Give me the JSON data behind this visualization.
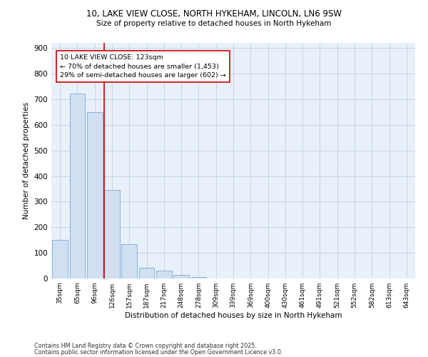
{
  "title1": "10, LAKE VIEW CLOSE, NORTH HYKEHAM, LINCOLN, LN6 9SW",
  "title2": "Size of property relative to detached houses in North Hykeham",
  "xlabel": "Distribution of detached houses by size in North Hykeham",
  "ylabel": "Number of detached properties",
  "bar_labels": [
    "35sqm",
    "65sqm",
    "96sqm",
    "126sqm",
    "157sqm",
    "187sqm",
    "217sqm",
    "248sqm",
    "278sqm",
    "309sqm",
    "339sqm",
    "369sqm",
    "400sqm",
    "430sqm",
    "461sqm",
    "491sqm",
    "521sqm",
    "552sqm",
    "582sqm",
    "613sqm",
    "643sqm"
  ],
  "bar_values": [
    150,
    722,
    650,
    345,
    133,
    42,
    32,
    13,
    5,
    0,
    0,
    0,
    0,
    0,
    0,
    0,
    0,
    0,
    0,
    0,
    0
  ],
  "bar_color": "#d0e0f0",
  "bar_edge_color": "#7aaadd",
  "grid_color": "#c5d5e8",
  "background_color": "#e8f0fa",
  "vline_color": "#cc0000",
  "annotation_text": "10 LAKE VIEW CLOSE: 123sqm\n← 70% of detached houses are smaller (1,453)\n29% of semi-detached houses are larger (602) →",
  "ylim": [
    0,
    920
  ],
  "yticks": [
    0,
    100,
    200,
    300,
    400,
    500,
    600,
    700,
    800,
    900
  ],
  "footer1": "Contains HM Land Registry data © Crown copyright and database right 2025.",
  "footer2": "Contains public sector information licensed under the Open Government Licence v3.0."
}
